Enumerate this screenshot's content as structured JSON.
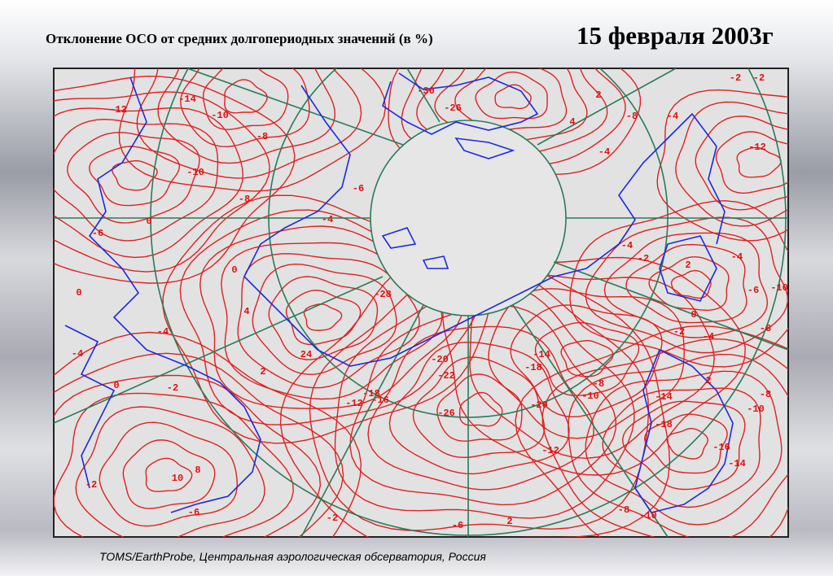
{
  "header": {
    "title": "Отклонение ОСО от средних долгопериодных значений (в %)",
    "date": "15 февраля 2003г"
  },
  "map": {
    "contour_labels": [
      "-12",
      "-14",
      "-10",
      "-8",
      "-10",
      "-8",
      "0",
      "-6",
      "0",
      "-4",
      "-4",
      "0",
      "-2",
      "10",
      "8",
      "-2",
      "-6",
      "4",
      "2",
      "0",
      "-6",
      "-4",
      "-28",
      "-20",
      "-22",
      "-18",
      "-26",
      "-12",
      "-16",
      "-2",
      "-6",
      "2",
      "-12",
      "-20",
      "-10",
      "-8",
      "-14",
      "-18",
      "-26",
      "-30",
      "-2",
      "-2",
      "2",
      "-8",
      "-4",
      "4",
      "-4",
      "-12",
      "-4",
      "-2",
      "2",
      "-4",
      "-6",
      "-10",
      "0",
      "-2",
      "-8",
      "-4",
      "-14",
      "-18",
      "-16",
      "-14",
      "-10",
      "-8",
      "-8",
      "-10",
      "2",
      "24"
    ]
  },
  "footer": {
    "source": "TOMS/EarthProbe, Центральная аэрологическая обсерватория, Россия"
  }
}
